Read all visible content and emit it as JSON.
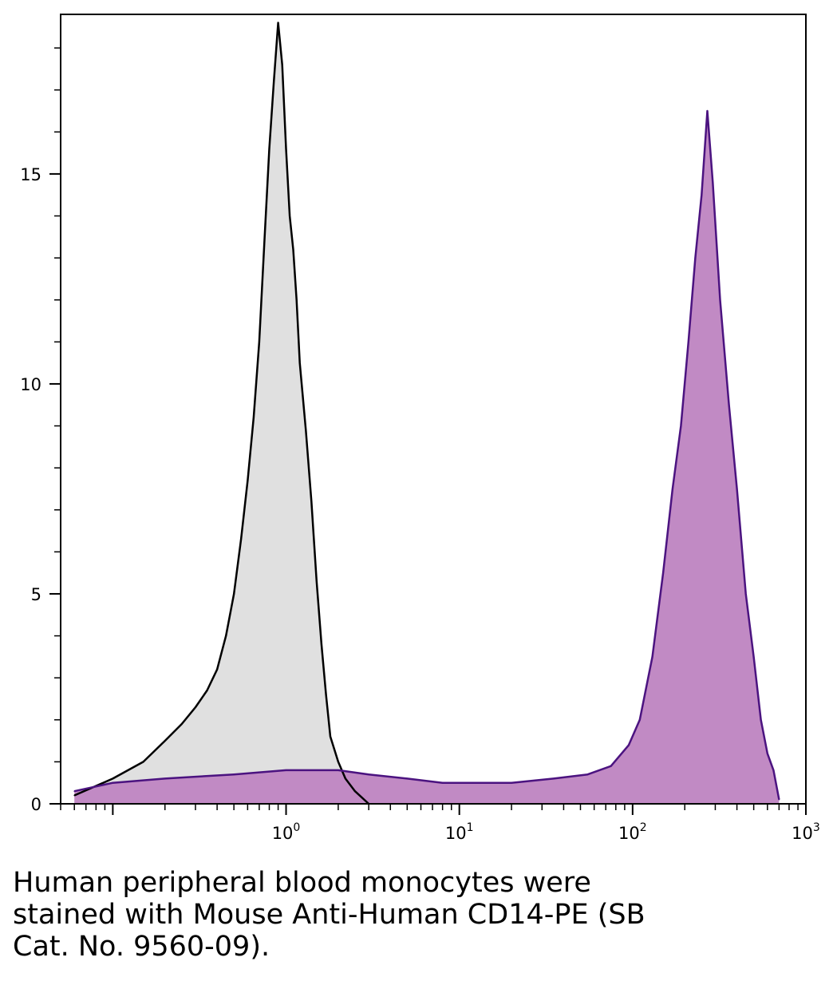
{
  "caption": {
    "lines": [
      "Human peripheral blood monocytes were",
      "stained with Mouse Anti-Human CD14-PE (SB",
      "Cat. No. 9560-09)."
    ]
  },
  "chart_data": {
    "type": "area",
    "title": "",
    "xlabel": "",
    "ylabel": "",
    "xscale": "log",
    "xlim": [
      0.05,
      1000
    ],
    "ylim": [
      0,
      18.8
    ],
    "grid": false,
    "x_tick_labels": [
      {
        "value": 1,
        "base": "10",
        "exp": "0"
      },
      {
        "value": 10,
        "base": "10",
        "exp": "1"
      },
      {
        "value": 100,
        "base": "10",
        "exp": "2"
      },
      {
        "value": 1000,
        "base": "10",
        "exp": "3"
      }
    ],
    "y_ticks": [
      0,
      5,
      10,
      15
    ],
    "colors": {
      "control_line": "#000000",
      "control_fill": "#e0e0e0",
      "stained_line": "#4b1380",
      "stained_fill": "#c18ac4"
    },
    "series": [
      {
        "role": "control",
        "x": [
          0.06,
          0.1,
          0.15,
          0.2,
          0.25,
          0.3,
          0.35,
          0.4,
          0.45,
          0.5,
          0.55,
          0.6,
          0.65,
          0.7,
          0.75,
          0.8,
          0.85,
          0.9,
          0.95,
          1.0,
          1.05,
          1.1,
          1.15,
          1.2,
          1.3,
          1.4,
          1.5,
          1.6,
          1.7,
          1.8,
          2.0,
          2.2,
          2.5,
          3.0
        ],
        "values": [
          0.2,
          0.6,
          1.0,
          1.5,
          1.9,
          2.3,
          2.7,
          3.2,
          4.0,
          5.0,
          6.3,
          7.7,
          9.2,
          11.0,
          13.4,
          15.6,
          17.2,
          18.6,
          17.6,
          15.6,
          14.0,
          13.2,
          12.0,
          10.5,
          8.9,
          7.2,
          5.3,
          3.8,
          2.6,
          1.6,
          1.0,
          0.6,
          0.3,
          0.0
        ]
      },
      {
        "role": "stained",
        "x": [
          0.06,
          0.1,
          0.2,
          0.5,
          1.0,
          2.0,
          3.0,
          5.0,
          8.0,
          12.0,
          20.0,
          35.0,
          55.0,
          75.0,
          95.0,
          110.0,
          130.0,
          150.0,
          170.0,
          190.0,
          210.0,
          230.0,
          250.0,
          270.0,
          290.0,
          320.0,
          360.0,
          400.0,
          450.0,
          500.0,
          550.0,
          600.0,
          650.0,
          700.0
        ],
        "values": [
          0.3,
          0.5,
          0.6,
          0.7,
          0.8,
          0.8,
          0.7,
          0.6,
          0.5,
          0.5,
          0.5,
          0.6,
          0.7,
          0.9,
          1.4,
          2.0,
          3.5,
          5.5,
          7.5,
          9.0,
          11.0,
          13.0,
          14.5,
          16.5,
          14.8,
          12.0,
          9.5,
          7.5,
          5.0,
          3.5,
          2.0,
          1.2,
          0.8,
          0.1
        ]
      }
    ]
  }
}
